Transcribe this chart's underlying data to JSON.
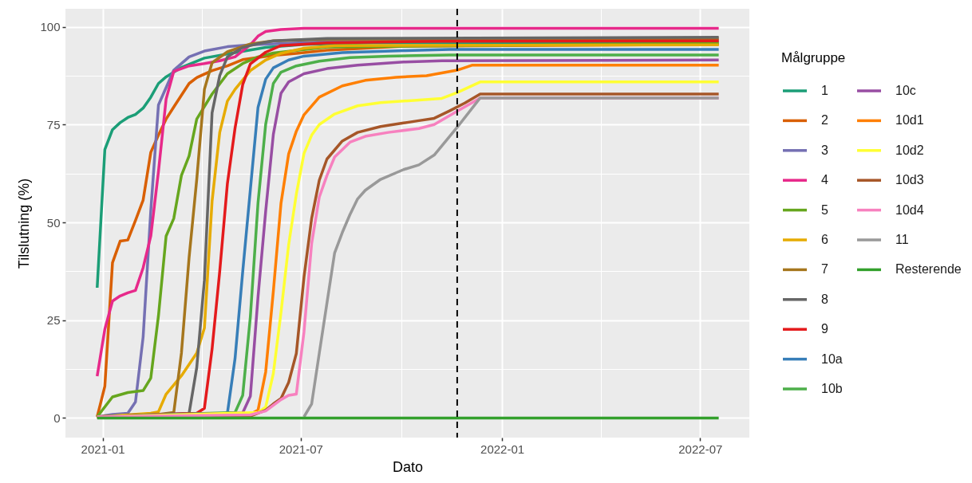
{
  "chart_data": {
    "type": "line",
    "xlabel": "Dato",
    "ylabel": "Tilslutning (%)",
    "legend_title": "Målgruppe",
    "xlim": [
      "2020-11-28",
      "2022-08-15"
    ],
    "ylim": [
      -5,
      104.6
    ],
    "xticks": [
      "2021-01",
      "2021-07",
      "2022-01",
      "2022-07"
    ],
    "yticks": [
      0,
      25,
      50,
      75,
      100
    ],
    "grid": true,
    "legend": "right",
    "ref_lines": [
      {
        "axis": "x",
        "value": "2021-11-21",
        "color": "#000000",
        "line_style": "dashed"
      }
    ],
    "series": [
      {
        "name": "1",
        "color": "#1b9e77",
        "x": [
          "2020-12-27",
          "2021-01-03",
          "2021-01-10",
          "2021-01-17",
          "2021-01-24",
          "2021-01-31",
          "2021-02-07",
          "2021-02-14",
          "2021-02-21",
          "2021-02-28",
          "2021-03-14",
          "2021-04-04",
          "2021-05-02",
          "2021-05-30",
          "2021-07-04",
          "2021-09-05",
          "2022-07-18"
        ],
        "values": [
          33.3,
          68.6,
          73.7,
          75.5,
          76.8,
          77.6,
          79.2,
          82,
          85.5,
          87.2,
          89.6,
          92,
          93.4,
          94.7,
          95.5,
          95.9,
          96
        ]
      },
      {
        "name": "2",
        "color": "#d95f02",
        "x": [
          "2020-12-27",
          "2021-01-03",
          "2021-01-10",
          "2021-01-17",
          "2021-01-24",
          "2021-01-31",
          "2021-02-07",
          "2021-02-14",
          "2021-02-21",
          "2021-02-28",
          "2021-03-07",
          "2021-03-14",
          "2021-03-21",
          "2021-03-28",
          "2021-04-11",
          "2021-04-25",
          "2021-05-09",
          "2021-06-06",
          "2021-06-27",
          "2021-07-25",
          "2021-10-03",
          "2022-07-18"
        ],
        "values": [
          0.3,
          8.1,
          39.7,
          45.2,
          45.5,
          50.5,
          55.7,
          67.9,
          72.3,
          76.4,
          79.5,
          82.5,
          85.5,
          87,
          88.8,
          90,
          91.6,
          92.7,
          93.2,
          94,
          95,
          95.5
        ]
      },
      {
        "name": "3",
        "color": "#7570b3",
        "x": [
          "2020-12-27",
          "2021-01-10",
          "2021-01-24",
          "2021-01-31",
          "2021-02-07",
          "2021-02-14",
          "2021-02-21",
          "2021-03-07",
          "2021-03-21",
          "2021-04-04",
          "2021-04-25",
          "2021-05-16",
          "2021-07-25",
          "2022-07-18"
        ],
        "values": [
          0.3,
          0.9,
          1.2,
          4.1,
          20.7,
          53,
          80,
          88.9,
          92.3,
          93.8,
          94.9,
          95.4,
          96.2,
          96.6
        ]
      },
      {
        "name": "4",
        "color": "#e7298a",
        "x": [
          "2020-12-27",
          "2021-01-03",
          "2021-01-10",
          "2021-01-17",
          "2021-01-24",
          "2021-01-31",
          "2021-02-07",
          "2021-02-14",
          "2021-02-21",
          "2021-02-28",
          "2021-03-07",
          "2021-03-21",
          "2021-04-04",
          "2021-04-18",
          "2021-05-02",
          "2021-05-16",
          "2021-05-23",
          "2021-05-30",
          "2021-06-13",
          "2021-07-04",
          "2022-07-18"
        ],
        "values": [
          10.7,
          22.7,
          29.9,
          31.2,
          32,
          32.6,
          38.4,
          46.5,
          63,
          81.5,
          88.6,
          90,
          90.6,
          91.3,
          92.3,
          95.4,
          97.6,
          98.8,
          99.3,
          99.6,
          99.6
        ]
      },
      {
        "name": "5",
        "color": "#66a61e",
        "x": [
          "2020-12-27",
          "2021-01-10",
          "2021-01-24",
          "2021-02-07",
          "2021-02-14",
          "2021-02-21",
          "2021-02-28",
          "2021-03-07",
          "2021-03-14",
          "2021-03-21",
          "2021-03-28",
          "2021-04-11",
          "2021-04-25",
          "2021-05-09",
          "2021-05-23",
          "2021-06-06",
          "2021-07-25",
          "2022-07-18"
        ],
        "values": [
          0.3,
          5.4,
          6.5,
          7,
          10.2,
          26.1,
          46.5,
          51,
          62,
          67,
          76.4,
          82.8,
          88,
          90.6,
          92.3,
          93.3,
          94.8,
          95.8
        ]
      },
      {
        "name": "6",
        "color": "#e6ab02",
        "x": [
          "2020-12-27",
          "2021-02-14",
          "2021-02-21",
          "2021-02-28",
          "2021-03-14",
          "2021-03-21",
          "2021-03-28",
          "2021-04-04",
          "2021-04-11",
          "2021-04-18",
          "2021-04-25",
          "2021-05-02",
          "2021-05-16",
          "2021-05-30",
          "2021-06-13",
          "2021-07-04",
          "2021-08-01",
          "2022-07-18"
        ],
        "values": [
          0.3,
          1.2,
          1.6,
          6.1,
          10.8,
          13.7,
          16.6,
          23,
          55.4,
          73,
          81,
          84,
          88.8,
          91.5,
          93.2,
          94.5,
          95.2,
          95.4
        ]
      },
      {
        "name": "7",
        "color": "#a6761d",
        "x": [
          "2020-12-27",
          "2021-02-21",
          "2021-03-07",
          "2021-03-14",
          "2021-03-21",
          "2021-03-28",
          "2021-04-04",
          "2021-04-11",
          "2021-04-25",
          "2021-05-16",
          "2021-06-06",
          "2021-07-25",
          "2022-07-18"
        ],
        "values": [
          0.3,
          0.9,
          1.4,
          16.6,
          41,
          61,
          84,
          90.8,
          93.6,
          95.6,
          96.4,
          96.8,
          97
        ]
      },
      {
        "name": "8",
        "color": "#666666",
        "x": [
          "2020-12-27",
          "2021-03-21",
          "2021-03-28",
          "2021-04-04",
          "2021-04-11",
          "2021-04-18",
          "2021-04-25",
          "2021-05-09",
          "2021-05-23",
          "2021-06-06",
          "2021-07-25",
          "2022-07-18"
        ],
        "values": [
          0.3,
          1.2,
          12.9,
          35.3,
          78,
          87.5,
          92.3,
          94.7,
          95.7,
          96.4,
          97,
          97.3
        ]
      },
      {
        "name": "9",
        "color": "#e41a1c",
        "x": [
          "2020-12-27",
          "2021-03-28",
          "2021-04-04",
          "2021-04-11",
          "2021-04-18",
          "2021-04-25",
          "2021-05-02",
          "2021-05-09",
          "2021-05-16",
          "2021-05-30",
          "2021-06-13",
          "2021-07-25",
          "2021-11-07",
          "2022-07-18"
        ],
        "values": [
          0.3,
          1.2,
          2.5,
          17.6,
          37.5,
          59.9,
          74.1,
          85.2,
          90.5,
          93.5,
          95.2,
          95.9,
          96.3,
          96.4
        ]
      },
      {
        "name": "10a",
        "color": "#377eb8",
        "x": [
          "2020-12-27",
          "2021-04-25",
          "2021-05-02",
          "2021-05-09",
          "2021-05-16",
          "2021-05-23",
          "2021-05-30",
          "2021-06-06",
          "2021-06-20",
          "2021-07-04",
          "2021-08-08",
          "2021-10-03",
          "2021-11-14",
          "2022-07-18"
        ],
        "values": [
          0.3,
          1.2,
          15.2,
          37.4,
          58.4,
          79.4,
          86.6,
          89.5,
          91.5,
          92.5,
          93.4,
          93.9,
          94.2,
          94.2
        ]
      },
      {
        "name": "10b",
        "color": "#4daf4a",
        "x": [
          "2020-12-27",
          "2021-05-02",
          "2021-05-09",
          "2021-05-16",
          "2021-05-23",
          "2021-05-30",
          "2021-06-06",
          "2021-06-13",
          "2021-06-27",
          "2021-07-18",
          "2021-08-15",
          "2021-09-19",
          "2021-11-14",
          "2022-07-18"
        ],
        "values": [
          0.3,
          1.4,
          5.8,
          25.9,
          55,
          75.1,
          85.5,
          88.4,
          90,
          91.2,
          92.1,
          92.5,
          92.8,
          92.8
        ]
      },
      {
        "name": "10c",
        "color": "#984ea3",
        "x": [
          "2020-12-27",
          "2021-05-09",
          "2021-05-16",
          "2021-05-23",
          "2021-05-30",
          "2021-06-06",
          "2021-06-13",
          "2021-06-20",
          "2021-07-04",
          "2021-07-25",
          "2021-08-22",
          "2021-10-03",
          "2021-11-07",
          "2022-07-18"
        ],
        "values": [
          0.3,
          1.3,
          5.6,
          31,
          52.9,
          72.5,
          83,
          85.9,
          88,
          89.3,
          90.2,
          91,
          91.3,
          91.5
        ]
      },
      {
        "name": "10d1",
        "color": "#ff7f00",
        "x": [
          "2020-12-27",
          "2021-05-16",
          "2021-05-23",
          "2021-05-30",
          "2021-06-06",
          "2021-06-13",
          "2021-06-20",
          "2021-06-27",
          "2021-07-04",
          "2021-07-18",
          "2021-08-08",
          "2021-08-29",
          "2021-09-26",
          "2021-10-24",
          "2021-11-07",
          "2021-11-21",
          "2021-12-05",
          "2022-07-18"
        ],
        "values": [
          0.3,
          1,
          2,
          11.8,
          32.4,
          54.9,
          67.5,
          73.3,
          77.5,
          82,
          84.9,
          86.3,
          87.1,
          87.5,
          88.2,
          88.9,
          90.2,
          90.2
        ]
      },
      {
        "name": "10d2",
        "color": "#ffff33",
        "x": [
          "2020-12-27",
          "2021-05-23",
          "2021-05-30",
          "2021-06-06",
          "2021-06-13",
          "2021-06-20",
          "2021-06-27",
          "2021-07-04",
          "2021-07-11",
          "2021-07-18",
          "2021-08-01",
          "2021-08-22",
          "2021-09-12",
          "2021-10-03",
          "2021-11-07",
          "2021-11-21",
          "2021-12-12",
          "2022-07-18"
        ],
        "values": [
          0.3,
          1.4,
          2.8,
          11.4,
          27,
          44.3,
          57.2,
          67.6,
          72.3,
          75,
          77.7,
          79.8,
          80.6,
          81,
          81.7,
          83.2,
          85.9,
          85.9
        ]
      },
      {
        "name": "10d3",
        "color": "#a65628",
        "x": [
          "2020-12-27",
          "2021-05-16",
          "2021-05-30",
          "2021-06-06",
          "2021-06-13",
          "2021-06-20",
          "2021-06-27",
          "2021-07-04",
          "2021-07-11",
          "2021-07-18",
          "2021-07-25",
          "2021-08-08",
          "2021-08-22",
          "2021-09-12",
          "2021-10-03",
          "2021-10-17",
          "2021-10-31",
          "2021-11-14",
          "2021-11-28",
          "2021-12-12",
          "2022-07-18"
        ],
        "values": [
          0.3,
          0.5,
          2,
          3.6,
          5,
          9.1,
          16.5,
          36,
          51,
          60.8,
          66.2,
          70.8,
          73,
          74.5,
          75.4,
          76,
          76.6,
          78.5,
          80.5,
          82.8,
          82.8
        ]
      },
      {
        "name": "10d4",
        "color": "#f781bf",
        "x": [
          "2020-12-27",
          "2021-05-16",
          "2021-05-30",
          "2021-06-13",
          "2021-06-20",
          "2021-06-27",
          "2021-07-04",
          "2021-07-11",
          "2021-07-18",
          "2021-07-25",
          "2021-08-01",
          "2021-08-15",
          "2021-08-29",
          "2021-09-19",
          "2021-10-17",
          "2021-10-31",
          "2021-11-21",
          "2021-12-12",
          "2022-07-18"
        ],
        "values": [
          0.3,
          0.8,
          1.8,
          4.7,
          5.8,
          6.1,
          22,
          44.6,
          56.5,
          62,
          66.7,
          70.5,
          72,
          73,
          74,
          75,
          78.4,
          81.8,
          81.8
        ]
      },
      {
        "name": "11",
        "color": "#999999",
        "x": [
          "2021-07-04",
          "2021-07-11",
          "2021-07-18",
          "2021-07-25",
          "2021-08-01",
          "2021-08-08",
          "2021-08-15",
          "2021-08-22",
          "2021-08-29",
          "2021-09-12",
          "2021-10-03",
          "2021-10-17",
          "2021-10-31",
          "2021-11-21",
          "2021-12-12",
          "2022-07-18"
        ],
        "values": [
          0.3,
          3.6,
          16.6,
          29.4,
          42.2,
          47.4,
          52,
          56,
          58.2,
          61,
          63.5,
          64.7,
          67.2,
          74.3,
          81.8,
          81.8
        ]
      },
      {
        "name": "Resterende",
        "color": "#33a02c",
        "x": [
          "2020-12-27",
          "2022-07-18"
        ],
        "values": [
          0,
          0
        ]
      }
    ]
  }
}
